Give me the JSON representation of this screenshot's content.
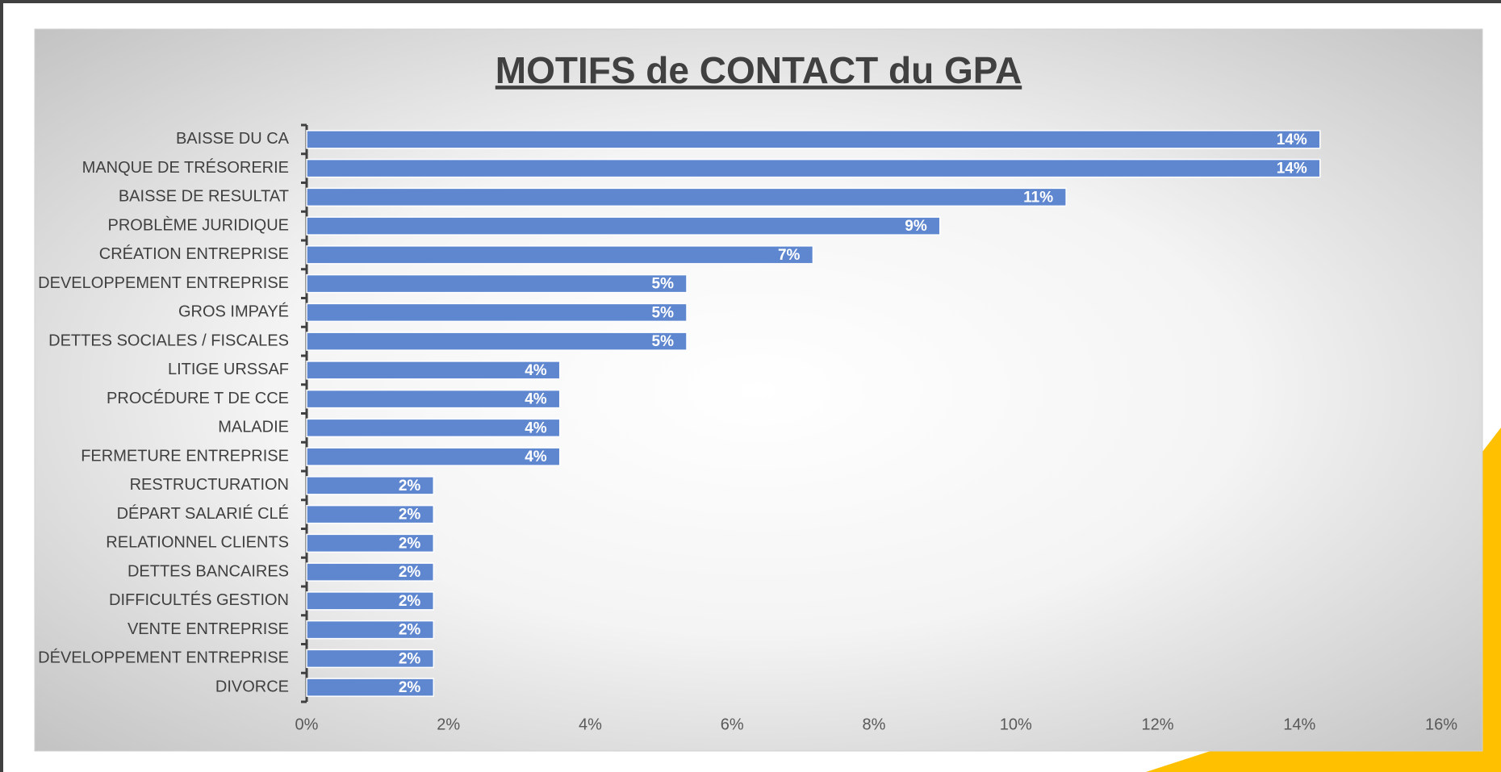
{
  "chart_data": {
    "type": "bar",
    "orientation": "horizontal",
    "title": "MOTIFS de CONTACT du GPA",
    "categories": [
      "BAISSE DU CA",
      "MANQUE DE TRÉSORERIE",
      "BAISSE DE RESULTAT",
      "PROBLÈME JURIDIQUE",
      "CRÉATION ENTREPRISE",
      "DEVELOPPEMENT ENTREPRISE",
      "GROS IMPAYÉ",
      "DETTES SOCIALES / FISCALES",
      "LITIGE URSSAF",
      "PROCÉDURE T DE CCE",
      "MALADIE",
      "FERMETURE ENTREPRISE",
      "RESTRUCTURATION",
      "DÉPART SALARIÉ CLÉ",
      "RELATIONNEL CLIENTS",
      "DETTES BANCAIRES",
      "DIFFICULTÉS GESTION",
      "VENTE ENTREPRISE",
      "DÉVELOPPEMENT ENTREPRISE",
      "DIVORCE"
    ],
    "values": [
      14.29,
      14.29,
      10.71,
      8.93,
      7.14,
      5.36,
      5.36,
      5.36,
      3.57,
      3.57,
      3.57,
      3.57,
      1.79,
      1.79,
      1.79,
      1.79,
      1.79,
      1.79,
      1.79,
      1.79
    ],
    "value_labels": [
      "14%",
      "14%",
      "11%",
      "9%",
      "7%",
      "5%",
      "5%",
      "5%",
      "4%",
      "4%",
      "4%",
      "4%",
      "2%",
      "2%",
      "2%",
      "2%",
      "2%",
      "2%",
      "2%",
      "2%"
    ],
    "color": "#5f87cf",
    "xlim": [
      0,
      16
    ],
    "xticks": [
      {
        "value": 0,
        "label": "0%"
      },
      {
        "value": 2,
        "label": "2%"
      },
      {
        "value": 4,
        "label": "4%"
      },
      {
        "value": 6,
        "label": "6%"
      },
      {
        "value": 8,
        "label": "8%"
      },
      {
        "value": 10,
        "label": "10%"
      },
      {
        "value": 12,
        "label": "12%"
      },
      {
        "value": 14,
        "label": "14%"
      },
      {
        "value": 16,
        "label": "16%"
      }
    ],
    "grid": false
  }
}
